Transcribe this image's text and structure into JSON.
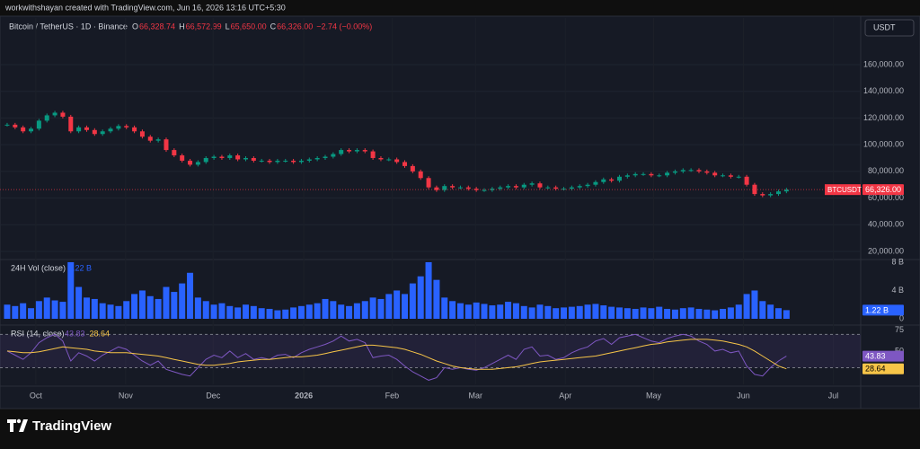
{
  "header": {
    "attribution": "workwithshayan created with TradingView.com, Jun 16, 2026 13:16 UTC+5:30",
    "symbol": "Bitcoin / TetherUS · 1D · Binance",
    "ohlc": [
      {
        "label": "O",
        "value": "66,328.74"
      },
      {
        "label": "H",
        "value": "66,572.99"
      },
      {
        "label": "L",
        "value": "65,650.00"
      },
      {
        "label": "C",
        "value": "66,326.00"
      }
    ],
    "change": "−2.74 (−0.00%)",
    "currency": "USDT"
  },
  "footer": {
    "brand": "TradingView"
  },
  "chart_data": [
    {
      "type": "candlestick",
      "symbol": "BTCUSDT",
      "up_color": "#089981",
      "down_color": "#f23645",
      "values": [
        115000,
        113000,
        110000,
        112000,
        118000,
        122000,
        124000,
        121000,
        110000,
        113000,
        111000,
        108000,
        110000,
        112000,
        114000,
        113000,
        110000,
        106000,
        103000,
        104000,
        96000,
        92000,
        88000,
        85000,
        87000,
        90000,
        91000,
        90000,
        92000,
        89000,
        90000,
        88000,
        88000,
        87000,
        88000,
        88000,
        87000,
        88000,
        89000,
        90000,
        91000,
        93000,
        96000,
        95000,
        96000,
        95000,
        90000,
        89000,
        89000,
        87000,
        84000,
        80000,
        75000,
        68000,
        66000,
        69000,
        68000,
        68000,
        67000,
        66000,
        66000,
        67000,
        68000,
        69000,
        68000,
        70000,
        71000,
        68000,
        68000,
        67000,
        67000,
        68000,
        69000,
        70000,
        72000,
        74000,
        73000,
        76000,
        77000,
        78000,
        78000,
        77000,
        77000,
        79000,
        80000,
        81000,
        81000,
        80000,
        79000,
        77000,
        77000,
        76000,
        76000,
        70000,
        63000,
        62000,
        63000,
        65000,
        66326
      ],
      "last_label": "66,326.00",
      "xlim": [
        -0.9,
        107
      ],
      "xticks": [
        {
          "value": 3.6,
          "label": "Oct"
        },
        {
          "value": 14.9,
          "label": "Nov"
        },
        {
          "value": 25.9,
          "label": "Dec"
        },
        {
          "value": 37.3,
          "label": "2026"
        },
        {
          "value": 48.4,
          "label": "Feb"
        },
        {
          "value": 58.9,
          "label": "Mar"
        },
        {
          "value": 70.2,
          "label": "Apr"
        },
        {
          "value": 81.3,
          "label": "May"
        },
        {
          "value": 92.6,
          "label": "Jun"
        },
        {
          "value": 103.9,
          "label": "Jul"
        }
      ],
      "ylim": [
        14600,
        195000
      ],
      "yticks": [
        {
          "value": 20000,
          "label": "20,000.00"
        },
        {
          "value": 40000,
          "label": "40,000.00"
        },
        {
          "value": 60000,
          "label": "60,000.00"
        },
        {
          "value": 80000,
          "label": "80,000.00"
        },
        {
          "value": 100000,
          "label": "100,000.00"
        },
        {
          "value": 120000,
          "label": "120,000.00"
        },
        {
          "value": 140000,
          "label": "140,000.00"
        },
        {
          "value": 160000,
          "label": "160,000.00"
        }
      ]
    },
    {
      "type": "bar",
      "title": "24H Vol (close)",
      "color": "#2962ff",
      "last_label": "1.22 B",
      "values": [
        2.0,
        1.8,
        2.2,
        1.5,
        2.5,
        3.0,
        2.6,
        2.4,
        8.0,
        4.5,
        3.0,
        2.8,
        2.2,
        2.0,
        1.8,
        2.5,
        3.5,
        4.0,
        3.2,
        2.8,
        4.5,
        3.8,
        5.0,
        6.5,
        3.0,
        2.5,
        2.0,
        2.2,
        1.8,
        1.6,
        2.0,
        1.8,
        1.5,
        1.4,
        1.2,
        1.3,
        1.6,
        1.8,
        2.0,
        2.2,
        2.8,
        2.5,
        2.0,
        1.8,
        2.2,
        2.5,
        3.0,
        2.8,
        3.5,
        4.0,
        3.5,
        5.0,
        6.0,
        8.0,
        5.5,
        3.0,
        2.5,
        2.2,
        2.0,
        2.3,
        2.1,
        1.9,
        2.0,
        2.4,
        2.2,
        1.8,
        1.6,
        2.0,
        1.8,
        1.5,
        1.6,
        1.7,
        1.8,
        2.0,
        2.1,
        1.9,
        1.7,
        1.6,
        1.5,
        1.4,
        1.6,
        1.5,
        1.7,
        1.4,
        1.3,
        1.5,
        1.6,
        1.4,
        1.3,
        1.2,
        1.4,
        1.6,
        2.0,
        3.5,
        4.0,
        2.5,
        2.0,
        1.5,
        1.22
      ],
      "ylim": [
        0,
        8.25
      ],
      "yticks": [
        0,
        {
          "value": 4,
          "label": "4 B"
        },
        {
          "value": 8,
          "label": "8 B"
        }
      ]
    },
    {
      "type": "line",
      "title": "RSI (14, close)",
      "band": [
        30,
        70
      ],
      "series": [
        {
          "color": "#7e57c2",
          "values": [
            50,
            45,
            40,
            48,
            60,
            66,
            70,
            62,
            38,
            48,
            44,
            38,
            45,
            50,
            55,
            52,
            45,
            38,
            33,
            38,
            28,
            25,
            22,
            20,
            30,
            40,
            45,
            42,
            50,
            42,
            47,
            40,
            42,
            40,
            45,
            46,
            42,
            48,
            52,
            55,
            58,
            62,
            68,
            62,
            64,
            60,
            42,
            44,
            45,
            40,
            32,
            25,
            20,
            15,
            18,
            30,
            28,
            30,
            28,
            27,
            30,
            35,
            40,
            45,
            40,
            52,
            55,
            44,
            45,
            40,
            42,
            48,
            52,
            55,
            62,
            65,
            58,
            66,
            68,
            70,
            66,
            62,
            60,
            65,
            68,
            70,
            68,
            62,
            58,
            50,
            52,
            48,
            50,
            32,
            22,
            20,
            30,
            38,
            43.83
          ]
        },
        {
          "color": "#f7c548",
          "values": [
            50,
            49,
            48,
            48,
            49,
            51,
            53,
            55,
            54,
            53,
            52,
            50,
            49,
            48,
            48,
            48,
            47,
            46,
            45,
            44,
            42,
            40,
            38,
            36,
            34,
            33,
            33,
            34,
            35,
            37,
            38,
            39,
            40,
            40,
            41,
            42,
            43,
            43,
            44,
            45,
            47,
            49,
            51,
            53,
            55,
            57,
            57,
            56,
            55,
            54,
            52,
            49,
            46,
            42,
            38,
            35,
            32,
            30,
            29,
            28,
            28,
            28,
            29,
            30,
            31,
            33,
            35,
            37,
            38,
            39,
            40,
            41,
            42,
            43,
            44,
            46,
            48,
            50,
            52,
            54,
            56,
            58,
            59,
            61,
            62,
            63,
            64,
            64,
            64,
            63,
            62,
            60,
            58,
            55,
            50,
            44,
            38,
            32,
            28.64
          ]
        }
      ],
      "ylim": [
        10,
        79
      ],
      "yticks": [
        50,
        75
      ]
    }
  ]
}
